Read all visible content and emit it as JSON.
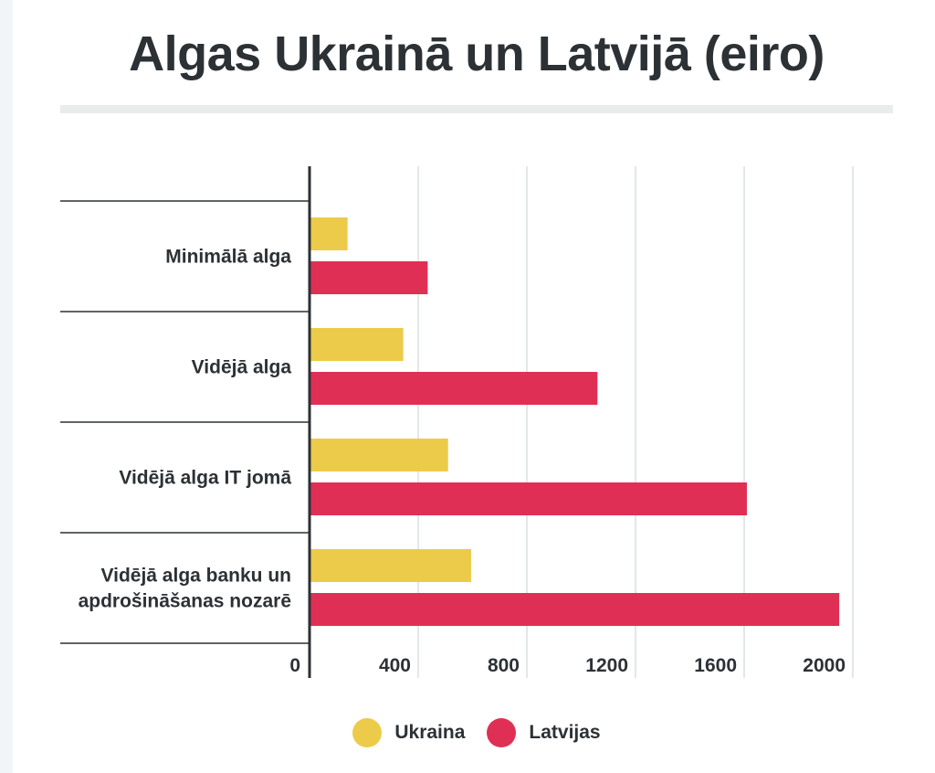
{
  "colors": {
    "ukraine": "#eccb4a",
    "latvia": "#e02f55",
    "grid": "#dcdfe1",
    "axis": "#2c3135"
  },
  "chart_data": {
    "type": "bar",
    "orientation": "horizontal",
    "title": "Algas Ukrainā un Latvijā (eiro)",
    "categories": [
      [
        "Minimālā alga"
      ],
      [
        "Vidējā alga"
      ],
      [
        "Vidējā alga IT jomā"
      ],
      [
        "Vidējā alga banku un",
        "apdrošināšanas nozarē"
      ]
    ],
    "series": [
      {
        "name": "Ukraina",
        "color_key": "ukraine",
        "values": [
          140,
          345,
          510,
          595
        ]
      },
      {
        "name": "Latvijas",
        "color_key": "latvia",
        "values": [
          435,
          1060,
          1610,
          1950
        ]
      }
    ],
    "xlim": [
      0,
      2000
    ],
    "ticks": [
      0,
      400,
      800,
      1200,
      1600,
      2000
    ],
    "tick_labels": [
      "0",
      "400",
      "800",
      "1200",
      "1600",
      "2000"
    ],
    "grid": true,
    "legend_position": "bottom-center"
  }
}
